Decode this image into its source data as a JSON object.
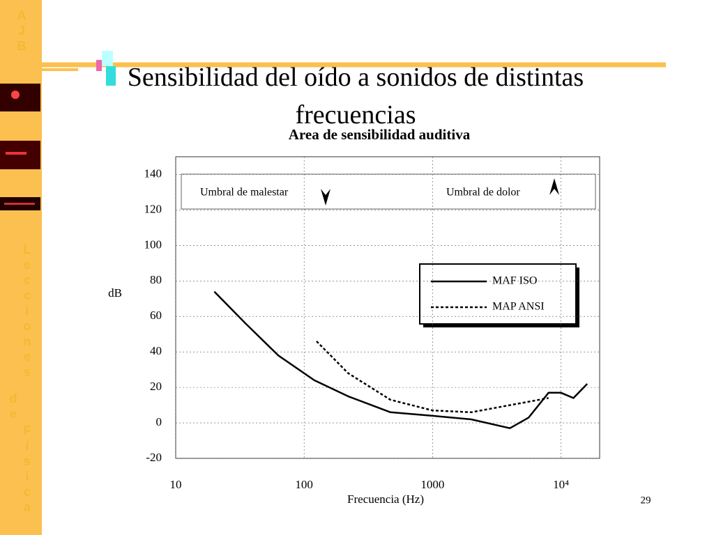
{
  "slide": {
    "title": "Sensibilidad del oído a sonidos de distintas frecuencias",
    "sidebar_top": "AJB",
    "sidebar_words": [
      "Lecciones",
      "de",
      "Física"
    ],
    "page_number": "29"
  },
  "chart_data": {
    "type": "line",
    "title": "Area de sensibilidad auditiva",
    "ylabel": "dB",
    "xlabel": "Frecuencia (Hz)",
    "xscale": "log",
    "xlim": [
      10,
      20000
    ],
    "ylim": [
      -20,
      150
    ],
    "xticks": [
      10,
      100,
      1000,
      {
        "value": 10000,
        "label": "10⁴"
      }
    ],
    "yticks": [
      -20,
      0,
      20,
      40,
      60,
      80,
      100,
      120,
      140
    ],
    "grid": true,
    "legend": "right",
    "series": [
      {
        "name": "MAF ISO",
        "color": "#000000",
        "line_style": "solid",
        "x": [
          20,
          35,
          63,
          120,
          220,
          470,
          1000,
          2000,
          4000,
          5600,
          8000,
          10000,
          12500,
          16000
        ],
        "values": [
          74,
          56,
          38,
          24,
          15,
          6,
          4,
          2,
          -3,
          3,
          17,
          17,
          14,
          22
        ]
      },
      {
        "name": "MAP ANSI",
        "color": "#000000",
        "line_style": "dotted",
        "x": [
          125,
          220,
          470,
          1000,
          2000,
          4000,
          8000
        ],
        "values": [
          46,
          28,
          13,
          7,
          6,
          10,
          14
        ]
      }
    ],
    "annotations": [
      {
        "text": "Umbral de malestar"
      },
      {
        "text": "Umbral de dolor"
      }
    ]
  }
}
